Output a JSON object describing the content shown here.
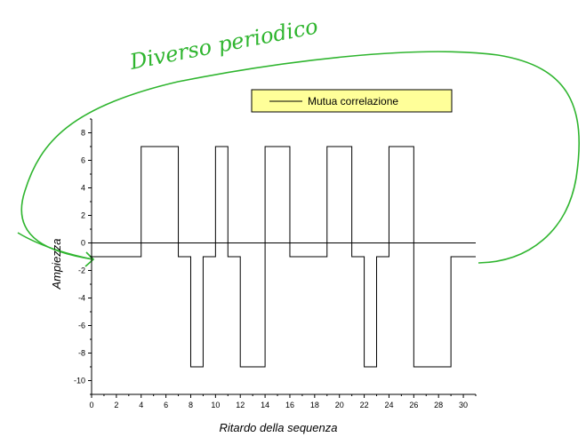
{
  "chart_data": {
    "type": "line",
    "title": "",
    "xlabel": "Ritardo della sequenza",
    "ylabel": "Ampiezza",
    "xlim": [
      0,
      31
    ],
    "ylim": [
      -11,
      9
    ],
    "x_ticks": [
      0,
      2,
      4,
      6,
      8,
      10,
      12,
      14,
      16,
      18,
      20,
      22,
      24,
      26,
      28,
      30
    ],
    "y_ticks": [
      8,
      6,
      4,
      2,
      0,
      -2,
      -4,
      -6,
      -8,
      -10
    ],
    "grid": false,
    "legend_position": "top-right",
    "step": true,
    "series": [
      {
        "name": "Mutua correlazione",
        "x": [
          0,
          1,
          2,
          3,
          4,
          5,
          6,
          7,
          8,
          9,
          10,
          11,
          12,
          13,
          14,
          15,
          16,
          17,
          18,
          19,
          20,
          21,
          22,
          23,
          24,
          25,
          26,
          27,
          28,
          29,
          30,
          31
        ],
        "y": [
          -1,
          -1,
          -1,
          -1,
          7,
          7,
          7,
          -1,
          -9,
          -1,
          7,
          -1,
          -9,
          -9,
          7,
          7,
          -1,
          -1,
          -1,
          7,
          7,
          -1,
          -9,
          -1,
          7,
          7,
          -9,
          -9,
          -9,
          -1,
          -1,
          -1
        ]
      }
    ],
    "zero_line": true,
    "annotations": [
      {
        "text": "Diverso periodico",
        "handwritten": true,
        "color": "#2fb52f"
      }
    ]
  },
  "colors": {
    "line": "#000000",
    "legend_background": "#ffff99",
    "annotation": "#2fb52f"
  }
}
